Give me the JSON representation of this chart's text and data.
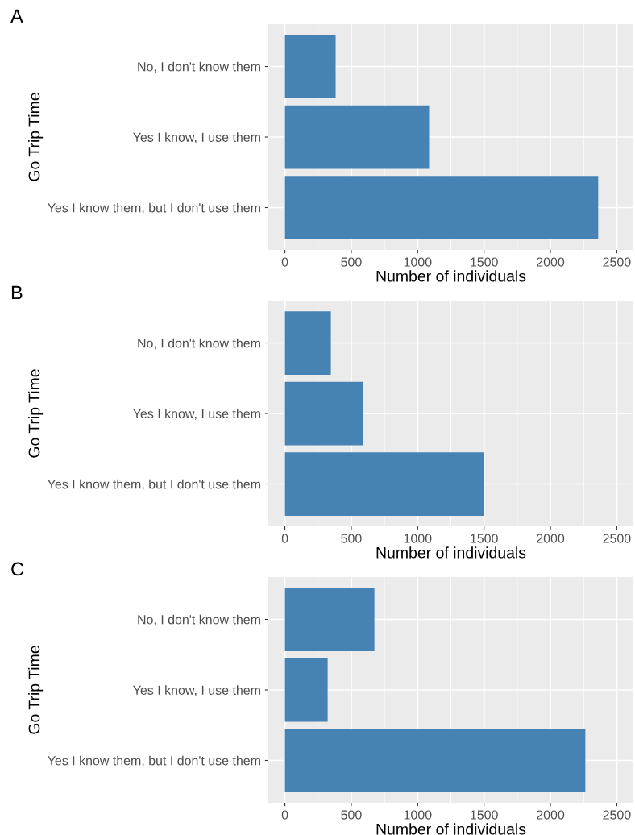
{
  "chart_data": [
    {
      "type": "bar",
      "orientation": "horizontal",
      "title": "A",
      "xlabel": "Number of individuals",
      "ylabel": "Go Trip Time",
      "categories": [
        "No, I don't know them",
        "Yes I know, I use them",
        "Yes I know them, but I don't use them"
      ],
      "values": [
        382,
        1086,
        2360
      ],
      "color": "#4682b4",
      "xlim": [
        -125,
        2625
      ],
      "xticks": [
        0,
        500,
        1000,
        1500,
        2000,
        2500
      ],
      "grid": true,
      "legend": false
    },
    {
      "type": "bar",
      "orientation": "horizontal",
      "title": "B",
      "xlabel": "Number of individuals",
      "ylabel": "Go Trip Time",
      "categories": [
        "No, I don't know them",
        "Yes I know, I use them",
        "Yes I know them, but I don't use them"
      ],
      "values": [
        346,
        589,
        1499
      ],
      "color": "#4682b4",
      "xlim": [
        -125,
        2625
      ],
      "xticks": [
        0,
        500,
        1000,
        1500,
        2000,
        2500
      ],
      "grid": true,
      "legend": false
    },
    {
      "type": "bar",
      "orientation": "horizontal",
      "title": "C",
      "xlabel": "Number of individuals",
      "ylabel": "Go Trip Time",
      "categories": [
        "No, I don't know them",
        "Yes I know, I use them",
        "Yes I know them, but I don't use them"
      ],
      "values": [
        674,
        322,
        2263
      ],
      "color": "#4682b4",
      "xlim": [
        -125,
        2625
      ],
      "xticks": [
        0,
        500,
        1000,
        1500,
        2000,
        2500
      ],
      "grid": true,
      "legend": false
    }
  ]
}
